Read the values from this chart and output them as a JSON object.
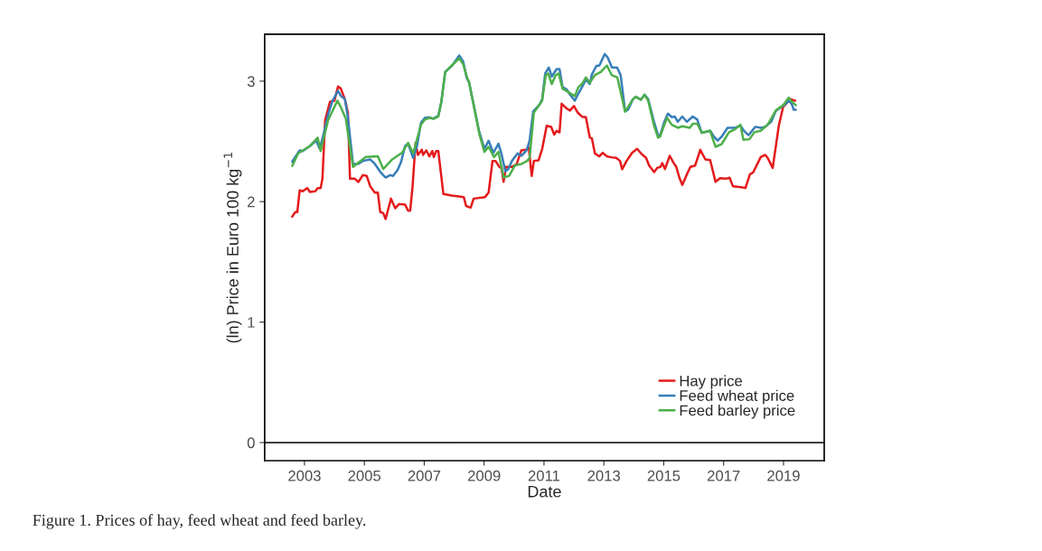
{
  "chart_data": {
    "type": "line",
    "xlabel": "Date",
    "ylabel": "(ln) Price in Euro 100 kg$^{−1}$",
    "xlim": [
      2001.67,
      2020.36
    ],
    "xticks": [
      2003,
      2005,
      2007,
      2009,
      2011,
      2013,
      2015,
      2017,
      2019
    ],
    "ylim": [
      -0.15,
      3.39
    ],
    "yticks": [
      0,
      1,
      2,
      3
    ],
    "grid": false,
    "legend": "bottom right",
    "line_style": "solid",
    "marker": "none",
    "ref_lines": [
      {
        "axis": "y",
        "value": 0,
        "color": "#000000",
        "line_style": "solid"
      }
    ],
    "annotations": [
      "Figure 1. Prices of hay, feed wheat and feed barley."
    ],
    "series": [
      {
        "name": "Hay price",
        "color": "#e41a1c",
        "x": [
          2002.59,
          2002.69,
          2002.76,
          2002.84,
          2002.94,
          2003.09,
          2003.18,
          2003.36,
          2003.44,
          2003.54,
          2003.6,
          2003.69,
          2003.85,
          2004.0,
          2004.12,
          2004.21,
          2004.35,
          2004.45,
          2004.52,
          2004.68,
          2004.8,
          2004.95,
          2005.08,
          2005.2,
          2005.35,
          2005.45,
          2005.53,
          2005.63,
          2005.71,
          2005.89,
          2006.03,
          2006.16,
          2006.36,
          2006.46,
          2006.53,
          2006.61,
          2006.71,
          2006.79,
          2006.92,
          2006.96,
          2007.07,
          2007.17,
          2007.27,
          2007.32,
          2007.4,
          2007.47,
          2007.64,
          2007.92,
          2008.32,
          2008.4,
          2008.55,
          2008.65,
          2009.03,
          2009.15,
          2009.28,
          2009.38,
          2009.51,
          2009.58,
          2009.65,
          2009.73,
          2009.93,
          2010.09,
          2010.24,
          2010.39,
          2010.49,
          2010.59,
          2010.66,
          2010.82,
          2010.94,
          2011.09,
          2011.24,
          2011.34,
          2011.42,
          2011.52,
          2011.59,
          2011.74,
          2011.87,
          2012.0,
          2012.13,
          2012.27,
          2012.4,
          2012.53,
          2012.6,
          2012.7,
          2012.85,
          2012.96,
          2013.11,
          2013.26,
          2013.41,
          2013.54,
          2013.61,
          2013.76,
          2013.94,
          2014.11,
          2014.26,
          2014.41,
          2014.51,
          2014.68,
          2014.78,
          2014.89,
          2014.95,
          2015.04,
          2015.2,
          2015.32,
          2015.42,
          2015.52,
          2015.62,
          2015.77,
          2015.89,
          2016.05,
          2016.22,
          2016.39,
          2016.55,
          2016.73,
          2016.88,
          2017.08,
          2017.2,
          2017.31,
          2017.58,
          2017.73,
          2017.88,
          2017.98,
          2018.24,
          2018.39,
          2018.47,
          2018.64,
          2018.84,
          2018.99,
          2019.09,
          2019.19,
          2019.29,
          2019.39
        ],
        "values": [
          1.875,
          1.913,
          1.913,
          2.094,
          2.086,
          2.113,
          2.08,
          2.086,
          2.113,
          2.113,
          2.19,
          2.678,
          2.828,
          2.838,
          2.955,
          2.94,
          2.85,
          2.738,
          2.19,
          2.19,
          2.163,
          2.22,
          2.213,
          2.125,
          2.075,
          2.075,
          1.913,
          1.905,
          1.855,
          2.025,
          1.945,
          1.98,
          1.975,
          1.925,
          1.925,
          2.125,
          2.488,
          2.388,
          2.43,
          2.388,
          2.425,
          2.375,
          2.42,
          2.37,
          2.42,
          2.42,
          2.063,
          2.05,
          2.038,
          1.963,
          1.95,
          2.025,
          2.038,
          2.075,
          2.338,
          2.338,
          2.288,
          2.28,
          2.164,
          2.288,
          2.288,
          2.313,
          2.425,
          2.43,
          2.45,
          2.213,
          2.338,
          2.343,
          2.438,
          2.63,
          2.62,
          2.556,
          2.588,
          2.575,
          2.813,
          2.776,
          2.756,
          2.794,
          2.738,
          2.705,
          2.7,
          2.531,
          2.525,
          2.4,
          2.375,
          2.405,
          2.375,
          2.368,
          2.363,
          2.338,
          2.269,
          2.338,
          2.405,
          2.438,
          2.395,
          2.363,
          2.3,
          2.245,
          2.28,
          2.288,
          2.32,
          2.27,
          2.38,
          2.325,
          2.288,
          2.2,
          2.138,
          2.225,
          2.288,
          2.3,
          2.43,
          2.35,
          2.345,
          2.164,
          2.194,
          2.19,
          2.198,
          2.128,
          2.12,
          2.113,
          2.228,
          2.24,
          2.37,
          2.388,
          2.363,
          2.28,
          2.626,
          2.789,
          2.813,
          2.855,
          2.845,
          2.838
        ]
      },
      {
        "name": "Feed wheat price",
        "color": "#377eb8",
        "x": [
          2002.59,
          2002.84,
          2002.94,
          2003.19,
          2003.39,
          2003.51,
          2003.64,
          2003.79,
          2003.94,
          2004.12,
          2004.22,
          2004.35,
          2004.45,
          2004.62,
          2004.8,
          2004.95,
          2005.2,
          2005.35,
          2005.56,
          2005.71,
          2005.86,
          2005.96,
          2006.11,
          2006.23,
          2006.36,
          2006.46,
          2006.63,
          2006.76,
          2006.89,
          2007.02,
          2007.17,
          2007.3,
          2007.47,
          2007.57,
          2007.7,
          2007.92,
          2008.17,
          2008.3,
          2008.42,
          2008.5,
          2008.83,
          2009.01,
          2009.15,
          2009.31,
          2009.48,
          2009.58,
          2009.71,
          2009.81,
          2009.93,
          2010.12,
          2010.25,
          2010.42,
          2010.52,
          2010.64,
          2010.84,
          2010.94,
          2011.04,
          2011.16,
          2011.26,
          2011.42,
          2011.52,
          2011.62,
          2011.76,
          2011.87,
          2012.03,
          2012.13,
          2012.27,
          2012.4,
          2012.53,
          2012.6,
          2012.75,
          2012.85,
          2013.03,
          2013.13,
          2013.27,
          2013.44,
          2013.56,
          2013.71,
          2013.81,
          2013.96,
          2014.06,
          2014.24,
          2014.36,
          2014.48,
          2014.66,
          2014.81,
          2014.88,
          2015.02,
          2015.14,
          2015.27,
          2015.37,
          2015.47,
          2015.62,
          2015.77,
          2015.97,
          2016.12,
          2016.27,
          2016.55,
          2016.68,
          2016.8,
          2016.93,
          2017.13,
          2017.38,
          2017.56,
          2017.68,
          2017.83,
          2018.06,
          2018.24,
          2018.39,
          2018.59,
          2018.74,
          2018.99,
          2019.19,
          2019.29,
          2019.34,
          2019.41
        ],
        "values": [
          2.331,
          2.425,
          2.42,
          2.463,
          2.505,
          2.438,
          2.563,
          2.725,
          2.838,
          2.92,
          2.876,
          2.85,
          2.7,
          2.313,
          2.313,
          2.338,
          2.35,
          2.313,
          2.238,
          2.2,
          2.22,
          2.213,
          2.263,
          2.331,
          2.463,
          2.481,
          2.363,
          2.463,
          2.655,
          2.695,
          2.7,
          2.688,
          2.713,
          2.826,
          3.076,
          3.126,
          3.213,
          3.163,
          3.026,
          2.988,
          2.588,
          2.438,
          2.505,
          2.406,
          2.481,
          2.396,
          2.251,
          2.271,
          2.338,
          2.4,
          2.381,
          2.426,
          2.506,
          2.751,
          2.801,
          2.851,
          3.064,
          3.113,
          3.038,
          3.1,
          3.1,
          2.951,
          2.931,
          2.888,
          2.838,
          2.888,
          2.951,
          3.013,
          2.976,
          3.056,
          3.126,
          3.13,
          3.226,
          3.196,
          3.113,
          3.113,
          3.051,
          2.751,
          2.763,
          2.846,
          2.871,
          2.846,
          2.888,
          2.851,
          2.676,
          2.551,
          2.551,
          2.663,
          2.731,
          2.701,
          2.706,
          2.663,
          2.706,
          2.663,
          2.706,
          2.681,
          2.571,
          2.588,
          2.538,
          2.506,
          2.538,
          2.613,
          2.613,
          2.631,
          2.588,
          2.551,
          2.621,
          2.613,
          2.621,
          2.663,
          2.751,
          2.796,
          2.838,
          2.801,
          2.763,
          2.763
        ]
      },
      {
        "name": "Feed barley price",
        "color": "#4daf4a",
        "x": [
          2002.59,
          2002.79,
          2003.19,
          2003.44,
          2003.54,
          2003.79,
          2004.1,
          2004.22,
          2004.38,
          2004.62,
          2005.05,
          2005.45,
          2005.63,
          2005.91,
          2006.26,
          2006.46,
          2006.63,
          2006.89,
          2007.02,
          2007.17,
          2007.32,
          2007.47,
          2007.57,
          2007.7,
          2007.92,
          2008.17,
          2008.3,
          2008.42,
          2008.5,
          2008.85,
          2009.01,
          2009.15,
          2009.33,
          2009.48,
          2009.65,
          2009.83,
          2010.03,
          2010.25,
          2010.44,
          2010.52,
          2010.66,
          2010.94,
          2011.06,
          2011.14,
          2011.26,
          2011.39,
          2011.49,
          2011.62,
          2012.03,
          2012.15,
          2012.27,
          2012.4,
          2012.53,
          2012.7,
          2012.9,
          2013.1,
          2013.26,
          2013.45,
          2013.71,
          2013.96,
          2014.06,
          2014.24,
          2014.36,
          2014.48,
          2014.68,
          2014.81,
          2014.88,
          2015.02,
          2015.11,
          2015.27,
          2015.47,
          2015.62,
          2015.87,
          2015.97,
          2016.12,
          2016.27,
          2016.55,
          2016.73,
          2016.93,
          2017.18,
          2017.38,
          2017.56,
          2017.66,
          2017.86,
          2018.03,
          2018.24,
          2018.49,
          2018.74,
          2018.99,
          2019.17,
          2019.29,
          2019.41
        ],
        "values": [
          2.296,
          2.401,
          2.463,
          2.531,
          2.42,
          2.676,
          2.838,
          2.781,
          2.688,
          2.288,
          2.37,
          2.376,
          2.271,
          2.346,
          2.406,
          2.488,
          2.401,
          2.638,
          2.681,
          2.695,
          2.688,
          2.706,
          2.826,
          3.076,
          3.13,
          3.19,
          3.14,
          3.038,
          2.988,
          2.551,
          2.413,
          2.455,
          2.37,
          2.413,
          2.2,
          2.213,
          2.301,
          2.313,
          2.338,
          2.363,
          2.738,
          2.838,
          3.05,
          3.063,
          2.976,
          3.05,
          3.063,
          2.938,
          2.876,
          2.951,
          2.976,
          3.031,
          2.988,
          3.051,
          3.076,
          3.13,
          3.051,
          3.031,
          2.746,
          2.846,
          2.871,
          2.846,
          2.888,
          2.838,
          2.626,
          2.531,
          2.541,
          2.638,
          2.696,
          2.638,
          2.613,
          2.626,
          2.613,
          2.646,
          2.646,
          2.571,
          2.588,
          2.455,
          2.476,
          2.576,
          2.601,
          2.638,
          2.513,
          2.518,
          2.576,
          2.588,
          2.646,
          2.756,
          2.801,
          2.863,
          2.826,
          2.801
        ]
      }
    ]
  }
}
